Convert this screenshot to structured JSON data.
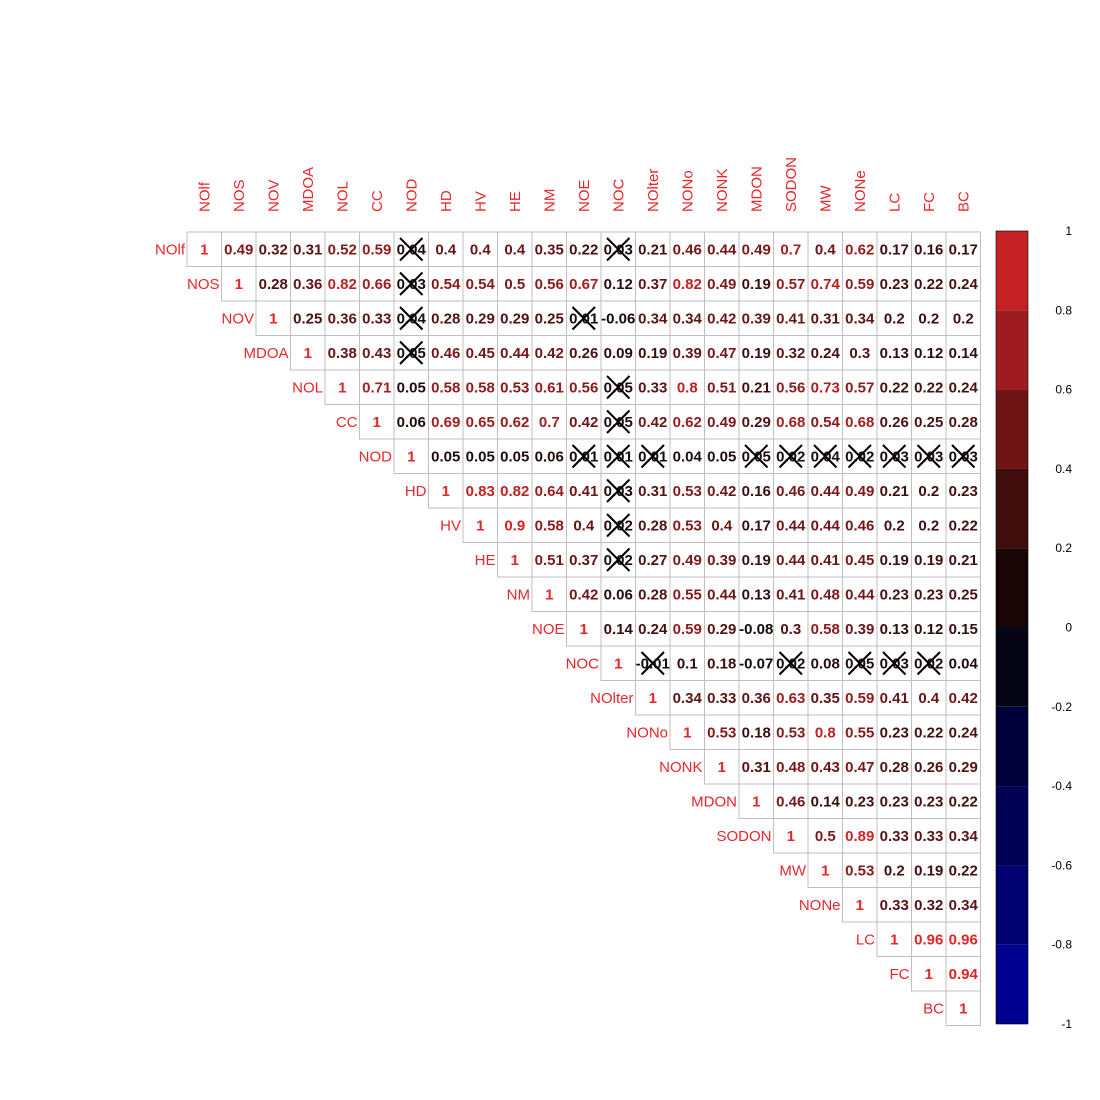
{
  "chart_data": {
    "type": "heatmap",
    "title": "",
    "variables": [
      "NOlf",
      "NOS",
      "NOV",
      "MDOA",
      "NOL",
      "CC",
      "NOD",
      "HD",
      "HV",
      "HE",
      "NM",
      "NOE",
      "NOC",
      "NOlter",
      "NONo",
      "NONK",
      "MDON",
      "SODON",
      "MW",
      "NONe",
      "LC",
      "FC",
      "BC"
    ],
    "matrix_layout": "upper-triangle",
    "rows": [
      {
        "name": "NOlf",
        "values": [
          "1",
          "0.49",
          "0.32",
          "0.31",
          "0.52",
          "0.59",
          "0.04",
          "0.4",
          "0.4",
          "0.4",
          "0.35",
          "0.22",
          "0.03",
          "0.21",
          "0.46",
          "0.44",
          "0.49",
          "0.7",
          "0.4",
          "0.62",
          "0.17",
          "0.16",
          "0.17"
        ]
      },
      {
        "name": "NOS",
        "values": [
          "1",
          "0.28",
          "0.36",
          "0.82",
          "0.66",
          "0.03",
          "0.54",
          "0.54",
          "0.5",
          "0.56",
          "0.67",
          "0.12",
          "0.37",
          "0.82",
          "0.49",
          "0.19",
          "0.57",
          "0.74",
          "0.59",
          "0.23",
          "0.22",
          "0.24"
        ]
      },
      {
        "name": "NOV",
        "values": [
          "1",
          "0.25",
          "0.36",
          "0.33",
          "0.04",
          "0.28",
          "0.29",
          "0.29",
          "0.25",
          "0.01",
          "-0.06",
          "0.34",
          "0.34",
          "0.42",
          "0.39",
          "0.41",
          "0.31",
          "0.34",
          "0.2",
          "0.2",
          "0.2"
        ]
      },
      {
        "name": "MDOA",
        "values": [
          "1",
          "0.38",
          "0.43",
          "0.05",
          "0.46",
          "0.45",
          "0.44",
          "0.42",
          "0.26",
          "0.09",
          "0.19",
          "0.39",
          "0.47",
          "0.19",
          "0.32",
          "0.24",
          "0.3",
          "0.13",
          "0.12",
          "0.14"
        ]
      },
      {
        "name": "NOL",
        "values": [
          "1",
          "0.71",
          "0.05",
          "0.58",
          "0.58",
          "0.53",
          "0.61",
          "0.56",
          "0.05",
          "0.33",
          "0.8",
          "0.51",
          "0.21",
          "0.56",
          "0.73",
          "0.57",
          "0.22",
          "0.22",
          "0.24"
        ]
      },
      {
        "name": "CC",
        "values": [
          "1",
          "0.06",
          "0.69",
          "0.65",
          "0.62",
          "0.7",
          "0.42",
          "0.05",
          "0.42",
          "0.62",
          "0.49",
          "0.29",
          "0.68",
          "0.54",
          "0.68",
          "0.26",
          "0.25",
          "0.28"
        ]
      },
      {
        "name": "NOD",
        "values": [
          "1",
          "0.05",
          "0.05",
          "0.05",
          "0.06",
          "0.01",
          "0.01",
          "0.01",
          "0.04",
          "0.05",
          "0.05",
          "0.02",
          "0.04",
          "0.02",
          "0.03",
          "0.03",
          "0.03"
        ]
      },
      {
        "name": "HD",
        "values": [
          "1",
          "0.83",
          "0.82",
          "0.64",
          "0.41",
          "0.03",
          "0.31",
          "0.53",
          "0.42",
          "0.16",
          "0.46",
          "0.44",
          "0.49",
          "0.21",
          "0.2",
          "0.23"
        ]
      },
      {
        "name": "HV",
        "values": [
          "1",
          "0.9",
          "0.58",
          "0.4",
          "0.02",
          "0.28",
          "0.53",
          "0.4",
          "0.17",
          "0.44",
          "0.44",
          "0.46",
          "0.2",
          "0.2",
          "0.22"
        ]
      },
      {
        "name": "HE",
        "values": [
          "1",
          "0.51",
          "0.37",
          "0.02",
          "0.27",
          "0.49",
          "0.39",
          "0.19",
          "0.44",
          "0.41",
          "0.45",
          "0.19",
          "0.19",
          "0.21"
        ]
      },
      {
        "name": "NM",
        "values": [
          "1",
          "0.42",
          "0.06",
          "0.28",
          "0.55",
          "0.44",
          "0.13",
          "0.41",
          "0.48",
          "0.44",
          "0.23",
          "0.23",
          "0.25"
        ]
      },
      {
        "name": "NOE",
        "values": [
          "1",
          "0.14",
          "0.24",
          "0.59",
          "0.29",
          "-0.08",
          "0.3",
          "0.58",
          "0.39",
          "0.13",
          "0.12",
          "0.15"
        ]
      },
      {
        "name": "NOC",
        "values": [
          "1",
          "-0.01",
          "0.1",
          "0.18",
          "-0.07",
          "0.02",
          "0.08",
          "0.05",
          "0.03",
          "0.02",
          "0.04"
        ]
      },
      {
        "name": "NOlter",
        "values": [
          "1",
          "0.34",
          "0.33",
          "0.36",
          "0.63",
          "0.35",
          "0.59",
          "0.41",
          "0.4",
          "0.42"
        ]
      },
      {
        "name": "NONo",
        "values": [
          "1",
          "0.53",
          "0.18",
          "0.53",
          "0.8",
          "0.55",
          "0.23",
          "0.22",
          "0.24"
        ]
      },
      {
        "name": "NONK",
        "values": [
          "1",
          "0.31",
          "0.48",
          "0.43",
          "0.47",
          "0.28",
          "0.26",
          "0.29"
        ]
      },
      {
        "name": "MDON",
        "values": [
          "1",
          "0.46",
          "0.14",
          "0.23",
          "0.23",
          "0.23",
          "0.22"
        ]
      },
      {
        "name": "SODON",
        "values": [
          "1",
          "0.5",
          "0.89",
          "0.33",
          "0.33",
          "0.34"
        ]
      },
      {
        "name": "MW",
        "values": [
          "1",
          "0.53",
          "0.2",
          "0.19",
          "0.22"
        ]
      },
      {
        "name": "NONe",
        "values": [
          "1",
          "0.33",
          "0.32",
          "0.34"
        ]
      },
      {
        "name": "LC",
        "values": [
          "1",
          "0.96",
          "0.96"
        ]
      },
      {
        "name": "FC",
        "values": [
          "1",
          "0.94"
        ]
      },
      {
        "name": "BC",
        "values": [
          "1"
        ]
      }
    ],
    "insignificant_crossed": [
      [
        "NOlf",
        "NOD"
      ],
      [
        "NOlf",
        "NOC"
      ],
      [
        "NOS",
        "NOD"
      ],
      [
        "NOV",
        "NOD"
      ],
      [
        "NOV",
        "NOE"
      ],
      [
        "MDOA",
        "NOD"
      ],
      [
        "NOL",
        "NOC"
      ],
      [
        "CC",
        "NOC"
      ],
      [
        "NOD",
        "NOE"
      ],
      [
        "NOD",
        "NOC"
      ],
      [
        "NOD",
        "NOlter"
      ],
      [
        "NOD",
        "MDON"
      ],
      [
        "NOD",
        "SODON"
      ],
      [
        "NOD",
        "MW"
      ],
      [
        "NOD",
        "NONe"
      ],
      [
        "NOD",
        "LC"
      ],
      [
        "NOD",
        "FC"
      ],
      [
        "NOD",
        "BC"
      ],
      [
        "HD",
        "NOC"
      ],
      [
        "HV",
        "NOC"
      ],
      [
        "HE",
        "NOC"
      ],
      [
        "NOC",
        "NOlter"
      ],
      [
        "NOC",
        "SODON"
      ],
      [
        "NOC",
        "NONe"
      ],
      [
        "NOC",
        "LC"
      ],
      [
        "NOC",
        "FC"
      ]
    ],
    "legend": {
      "position": "right",
      "range": [
        -1,
        1
      ],
      "ticks": [
        "1",
        "0.8",
        "0.6",
        "0.4",
        "0.2",
        "0",
        "-0.2",
        "-0.4",
        "-0.6",
        "-0.8",
        "-1"
      ],
      "bands": [
        {
          "from": 0.8,
          "to": 1.0,
          "color": "#c62125"
        },
        {
          "from": 0.6,
          "to": 0.8,
          "color": "#9e1b1f"
        },
        {
          "from": 0.4,
          "to": 0.6,
          "color": "#6f1516"
        },
        {
          "from": 0.2,
          "to": 0.4,
          "color": "#400d0d"
        },
        {
          "from": 0.0,
          "to": 0.2,
          "color": "#190505"
        },
        {
          "from": -0.2,
          "to": 0.0,
          "color": "#050515"
        },
        {
          "from": -0.4,
          "to": -0.2,
          "color": "#00003b"
        },
        {
          "from": -0.6,
          "to": -0.4,
          "color": "#000055"
        },
        {
          "from": -0.8,
          "to": -0.6,
          "color": "#00006e"
        },
        {
          "from": -1.0,
          "to": -0.8,
          "color": "#000090"
        }
      ]
    },
    "colors": {
      "label": "#e8262b",
      "grid": "#bfbfbf",
      "cross": "#000000"
    }
  }
}
